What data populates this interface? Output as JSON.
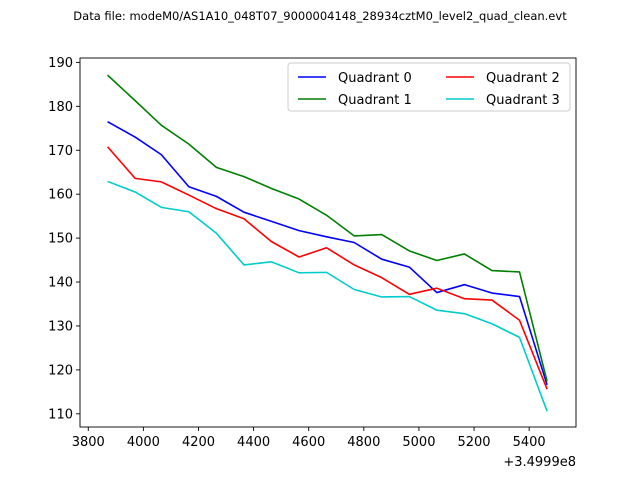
{
  "chart_data": {
    "type": "line",
    "title": "Data file: modeM0/AS1A10_048T07_9000004148_28934cztM0_level2_quad_clean.evt",
    "xlabel": "",
    "ylabel": "",
    "x_offset_label": "+3.4999e8",
    "x": [
      3870,
      3970,
      4065,
      4165,
      4265,
      4365,
      4465,
      4565,
      4665,
      4765,
      4865,
      4965,
      5065,
      5165,
      5265,
      5365,
      5465
    ],
    "xlim": [
      3770,
      5570
    ],
    "ylim": [
      107,
      191
    ],
    "x_ticks": [
      3800,
      4000,
      4200,
      4400,
      4600,
      4800,
      5000,
      5200,
      5400
    ],
    "x_tick_labels": [
      "3800",
      "4000",
      "4200",
      "4400",
      "4600",
      "4800",
      "5000",
      "5200",
      "5400"
    ],
    "y_ticks": [
      110,
      120,
      130,
      140,
      150,
      160,
      170,
      180,
      190
    ],
    "y_tick_labels": [
      "110",
      "120",
      "130",
      "140",
      "150",
      "160",
      "170",
      "180",
      "190"
    ],
    "grid": false,
    "legend_position": "top-right",
    "series": [
      {
        "name": "Quadrant 0",
        "color": "#0000ff",
        "values": [
          176.5,
          173.0,
          169.0,
          161.7,
          159.5,
          155.9,
          153.8,
          151.7,
          150.3,
          149.0,
          145.2,
          143.4,
          137.6,
          139.4,
          137.5,
          136.7,
          116.6
        ]
      },
      {
        "name": "Quadrant 1",
        "color": "#008000",
        "values": [
          187.1,
          181.3,
          175.7,
          171.4,
          166.1,
          164.0,
          161.3,
          158.9,
          155.2,
          150.5,
          150.8,
          147.1,
          144.9,
          146.4,
          142.6,
          142.3,
          117.4
        ]
      },
      {
        "name": "Quadrant 2",
        "color": "#ff0000",
        "values": [
          170.8,
          163.6,
          162.8,
          159.8,
          156.7,
          154.4,
          149.2,
          145.7,
          147.8,
          143.9,
          141.0,
          137.2,
          138.6,
          136.2,
          135.9,
          131.3,
          115.6
        ]
      },
      {
        "name": "Quadrant 3",
        "color": "#00cccc",
        "values": [
          162.9,
          160.5,
          157.0,
          156.0,
          151.1,
          143.9,
          144.6,
          142.1,
          142.2,
          138.3,
          136.6,
          136.7,
          133.6,
          132.8,
          130.5,
          127.4,
          110.6
        ]
      }
    ]
  }
}
